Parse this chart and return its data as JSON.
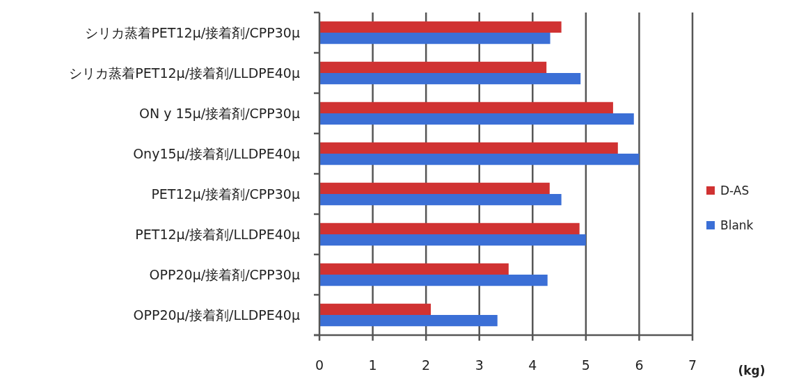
{
  "chart_data": {
    "type": "bar",
    "orientation": "horizontal",
    "xlabel": "(kg)",
    "categories": [
      "シリカ蒸着PET12μ/接着剤/CPP30μ",
      "シリカ蒸着PET12μ/接着剤/LLDPE40μ",
      "ON y 15μ/接着剤/CPP30μ",
      "Ony15μ/接着剤/LLDPE40μ",
      "PET12μ/接着剤/CPP30μ",
      "PET12μ/接着剤/LLDPE40μ",
      "OPP20μ/接着剤/CPP30μ",
      "OPP20μ/接着剤/LLDPE40μ"
    ],
    "series": [
      {
        "name": "D-AS",
        "color": "#d03232",
        "values": [
          4.54,
          4.26,
          5.51,
          5.6,
          4.32,
          4.88,
          3.55,
          2.09
        ]
      },
      {
        "name": "Blank",
        "color": "#3b6fd6",
        "values": [
          4.33,
          4.9,
          5.9,
          6.0,
          4.54,
          5.0,
          4.28,
          3.34
        ]
      }
    ],
    "xlim": [
      0,
      7
    ],
    "xticks": [
      0,
      1,
      2,
      3,
      4,
      5,
      6,
      7
    ],
    "grid": "x",
    "legend": "right"
  }
}
